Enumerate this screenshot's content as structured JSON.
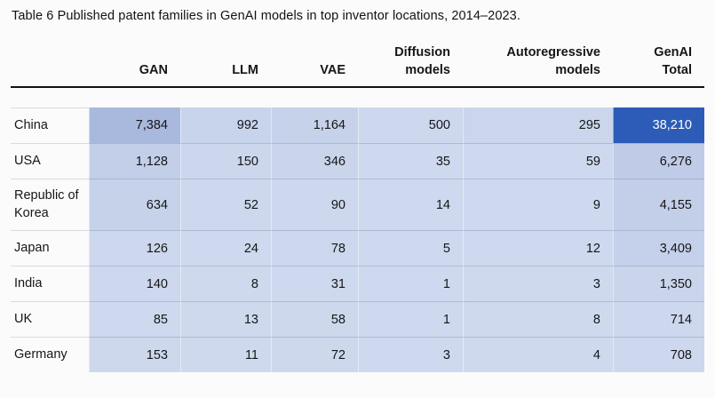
{
  "title": "Table 6 Published patent families in GenAI models in top inventor locations, 2014–2023.",
  "chart_data": {
    "type": "table",
    "title": "Table 6 Published patent families in GenAI models in top inventor locations, 2014–2023.",
    "columns": [
      "GAN",
      "LLM",
      "VAE",
      "Diffusion models",
      "Autoregressive models",
      "GenAI Total"
    ],
    "row_labels": [
      "China",
      "USA",
      "Republic of Korea",
      "Japan",
      "India",
      "UK",
      "Germany"
    ],
    "values": [
      [
        7384,
        992,
        1164,
        500,
        295,
        38210
      ],
      [
        1128,
        150,
        346,
        35,
        59,
        6276
      ],
      [
        634,
        52,
        90,
        14,
        9,
        4155
      ],
      [
        126,
        24,
        78,
        5,
        12,
        3409
      ],
      [
        140,
        8,
        31,
        1,
        3,
        1350
      ],
      [
        85,
        13,
        58,
        1,
        8,
        714
      ],
      [
        153,
        11,
        72,
        3,
        4,
        708
      ]
    ],
    "shading": "heatmap, higher value = darker blue",
    "color_scale": {
      "low": "#ced9ef",
      "high": "#2c5cb7"
    }
  },
  "table": {
    "dark_cell_text": "#ffffff",
    "headers": [
      {
        "lines": [
          "GAN"
        ]
      },
      {
        "lines": [
          "LLM"
        ]
      },
      {
        "lines": [
          "VAE"
        ]
      },
      {
        "lines": [
          "Diffusion",
          "models"
        ]
      },
      {
        "lines": [
          "Autoregressive",
          "models"
        ]
      },
      {
        "lines": [
          "GenAI",
          "Total"
        ]
      }
    ],
    "rows": [
      {
        "label": "China",
        "cells": [
          "7,384",
          "992",
          "1,164",
          "500",
          "295",
          "38,210"
        ],
        "colors": [
          "#a9b8dd",
          "#c8d3ec",
          "#c6d2ea",
          "#cdd7ee",
          "#cbd6ed",
          "#2c5cb7"
        ]
      },
      {
        "label": "USA",
        "cells": [
          "1,128",
          "150",
          "346",
          "35",
          "59",
          "6,276"
        ],
        "colors": [
          "#c3cfe9",
          "#ccd7ee",
          "#cad5ec",
          "#ced8ee",
          "#ced8ee",
          "#c0cbe7"
        ]
      },
      {
        "label": "Republic of Korea",
        "cells": [
          "634",
          "52",
          "90",
          "14",
          "9",
          "4,155"
        ],
        "colors": [
          "#c6d2ea",
          "#cdd8ee",
          "#cdd7ee",
          "#ced8ee",
          "#ced8ee",
          "#c3cee9"
        ]
      },
      {
        "label": "Japan",
        "cells": [
          "126",
          "24",
          "78",
          "5",
          "12",
          "3,409"
        ],
        "colors": [
          "#cdd7ed",
          "#ced8ee",
          "#cdd7ed",
          "#ced9ef",
          "#ced8ee",
          "#c5d0ea"
        ]
      },
      {
        "label": "India",
        "cells": [
          "140",
          "8",
          "31",
          "1",
          "3",
          "1,350"
        ],
        "colors": [
          "#cdd7ed",
          "#ced9ee",
          "#ced8ee",
          "#ced9ef",
          "#ced9ee",
          "#cad5ec"
        ]
      },
      {
        "label": "UK",
        "cells": [
          "85",
          "13",
          "58",
          "1",
          "8",
          "714"
        ],
        "colors": [
          "#ced8ee",
          "#ced9ee",
          "#cdd8ed",
          "#ced9ef",
          "#ced9ee",
          "#cdd7ed"
        ]
      },
      {
        "label": "Germany",
        "cells": [
          "153",
          "11",
          "72",
          "3",
          "4",
          "708"
        ],
        "colors": [
          "#cdd8ed",
          "#ced9ee",
          "#cdd8ed",
          "#ced9ef",
          "#ced9ee",
          "#cdd7ed"
        ]
      }
    ]
  }
}
